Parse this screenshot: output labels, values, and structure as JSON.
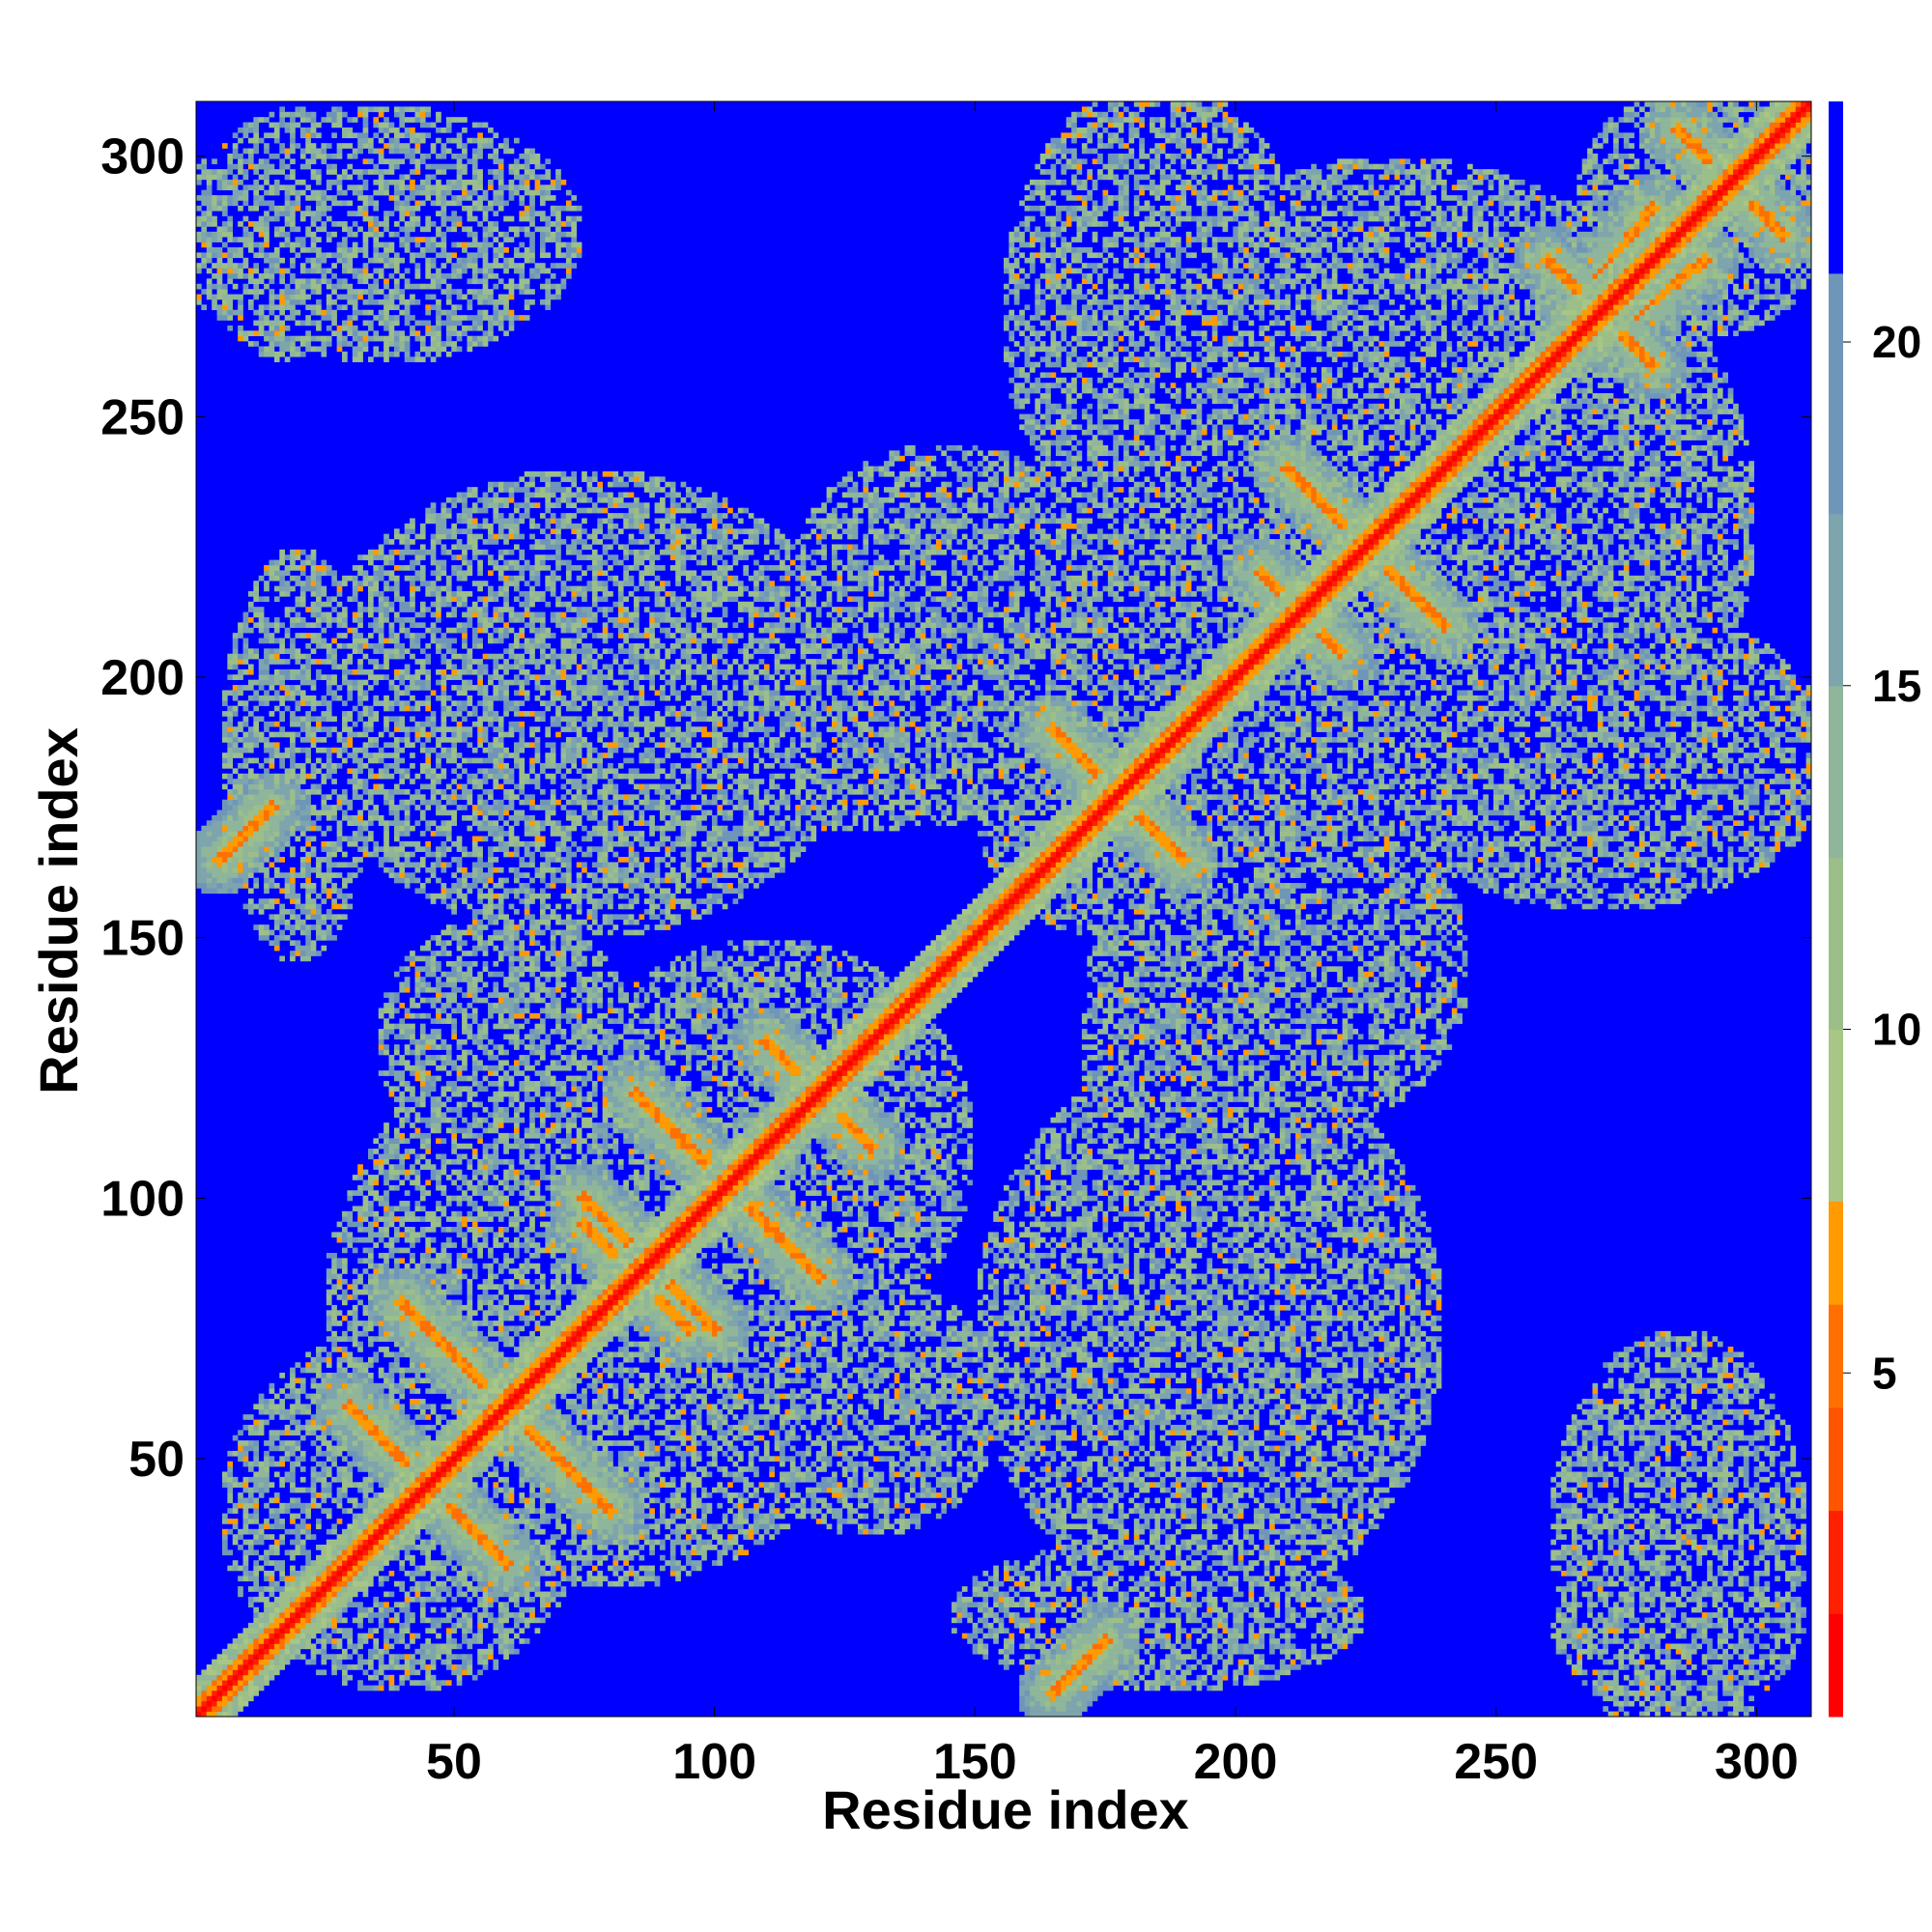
{
  "chart_data": {
    "type": "heatmap",
    "title": "",
    "xlabel": "Residue index",
    "ylabel": "Residue index",
    "xlim": [
      1,
      310
    ],
    "ylim": [
      1,
      310
    ],
    "xticks": [
      50,
      100,
      150,
      200,
      250,
      300
    ],
    "yticks": [
      50,
      100,
      150,
      200,
      250,
      300
    ],
    "colorbar": {
      "range": [
        0,
        23.5
      ],
      "ticks": [
        5,
        10,
        15,
        20
      ],
      "colors": [
        "#ff0000",
        "#ff2000",
        "#ff5500",
        "#ff7000",
        "#ff9a00",
        "#a8c685",
        "#9cbf8a",
        "#8fb59a",
        "#7ea5ad",
        "#6f96b8",
        "#0000ff"
      ],
      "bounds": [
        0,
        1.5,
        3,
        4.5,
        6,
        7.5,
        10,
        12.5,
        15,
        17.5,
        21,
        23.5
      ]
    },
    "diagonal": {
      "from": 1,
      "to": 310,
      "value": 0
    },
    "structure_notes": "Symmetric residue-residue distance map of ~310 residues; red diagonal, blue (>21) background, gray-green contact regions forming two domains (~1-160 and ~160-310)."
  }
}
